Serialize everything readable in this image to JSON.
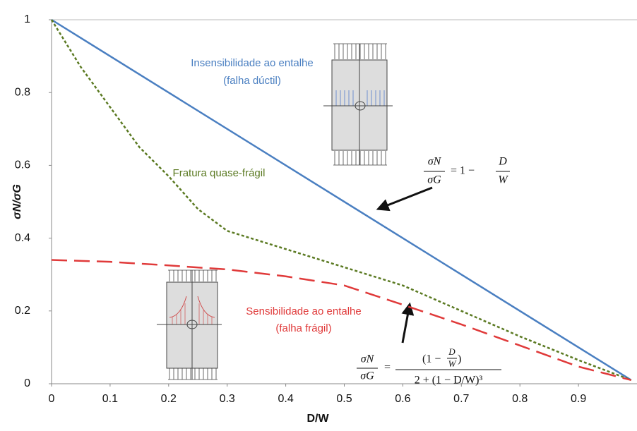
{
  "chart_data": {
    "type": "line",
    "xlabel": "D/W",
    "ylabel": "σN/σG",
    "xlim": [
      0,
      1
    ],
    "ylim": [
      0,
      1
    ],
    "xticks": [
      0,
      0.1,
      0.2,
      0.3,
      0.4,
      0.5,
      0.6,
      0.7,
      0.8,
      0.9
    ],
    "yticks": [
      0,
      0.2,
      0.4,
      0.6,
      0.8,
      1
    ],
    "grid": false,
    "series": [
      {
        "color": "#4a7fc1",
        "dash": "solid",
        "x": [
          0,
          0.99
        ],
        "values": [
          1,
          0.01
        ]
      },
      {
        "color": "#5b7a22",
        "dash": "dotted",
        "x": [
          0,
          0.05,
          0.1,
          0.15,
          0.2,
          0.25,
          0.3,
          0.4,
          0.5,
          0.6,
          0.7,
          0.8,
          0.9,
          0.99
        ],
        "values": [
          1,
          0.87,
          0.76,
          0.65,
          0.57,
          0.48,
          0.42,
          0.37,
          0.32,
          0.27,
          0.2,
          0.13,
          0.065,
          0.01
        ]
      },
      {
        "color": "#e03a3a",
        "dash": "dashed",
        "x": [
          0,
          0.1,
          0.2,
          0.3,
          0.4,
          0.5,
          0.6,
          0.7,
          0.8,
          0.9,
          0.99
        ],
        "values": [
          0.34,
          0.335,
          0.325,
          0.314,
          0.295,
          0.27,
          0.217,
          0.163,
          0.105,
          0.047,
          0.01
        ]
      }
    ],
    "annotations": {
      "ductile_1": "Insensibilidade ao entalhe",
      "ductile_2": "(falha dúctil)",
      "quasi": "Fratura quase-frágil",
      "brittle_1": "Sensibilidade ao entalhe",
      "brittle_2": "(falha frágil)"
    },
    "formula_1": {
      "lhs_num": "σN",
      "lhs_den": "σG",
      "eq": "= 1 −",
      "rhs_num": "D",
      "rhs_den": "W"
    },
    "formula_2": {
      "lhs_num": "σN",
      "lhs_den": "σG",
      "eq": "=",
      "num_open": "(1 −",
      "num_d": "D",
      "num_w": "W",
      "num_close": ")",
      "den": "2 + (1 − D/W)³"
    }
  }
}
